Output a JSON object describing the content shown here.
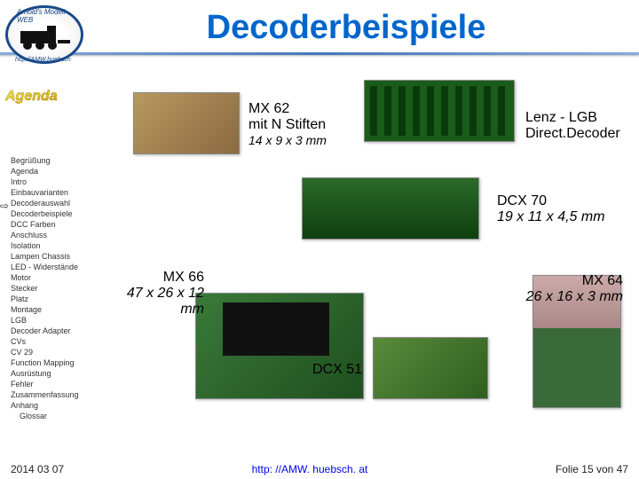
{
  "title": "Decoderbeispiele",
  "logo": {
    "top_text": "Arnold's Modell WEB",
    "bottom_text": "http://AMW.huebsch"
  },
  "agenda_label": "Agenda",
  "sidebar": {
    "items": [
      "Begrüßung",
      "Agenda",
      "Intro",
      "Einbauvarianten",
      "Decoderauswahl",
      "Decoderbeispiele",
      "DCC Farben",
      "Anschluss",
      "Isolation",
      "Lampen Chassis",
      "LED - Widerstände",
      "Motor",
      "Stecker",
      "Platz",
      "Montage",
      "LGB",
      "Decoder Adapter",
      "CVs",
      "CV 29",
      "Function Mapping",
      "Ausrüstung",
      "Fehler",
      "Zusammenfassung",
      "Anhang",
      "  Glossar"
    ],
    "current_index": 5
  },
  "products": {
    "mx62": {
      "name": "MX 62",
      "sub": "mit N Stiften",
      "dim": "14 x 9 x 3 mm"
    },
    "lenz": {
      "name": "Lenz - LGB",
      "sub": "Direct.Decoder",
      "dim": ""
    },
    "dcx70": {
      "name": "DCX 70",
      "dim": "19 x 11 x 4,5 mm"
    },
    "mx66": {
      "name": "MX 66",
      "dim": "47 x 26 x 12 mm"
    },
    "mx64": {
      "name": "MX 64",
      "dim": "26 x 16 x 3 mm"
    },
    "dcx51": {
      "name": "DCX 51",
      "dim": ""
    }
  },
  "footer": {
    "date": "2014 03 07",
    "url": "http: //AMW. huebsch. at",
    "slide": "Folie 15 von 47"
  },
  "colors": {
    "title": "#0066cc",
    "link": "#0000ee",
    "rule": "#5588cc"
  }
}
